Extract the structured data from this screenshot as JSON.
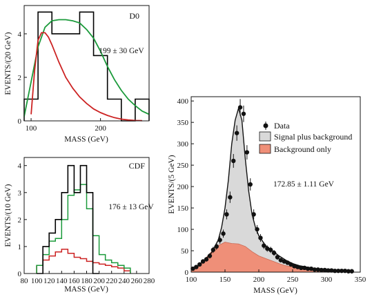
{
  "chart_data": [
    {
      "id": "d0",
      "type": "line",
      "label": "D0",
      "annotation": "199 ± 30 GeV",
      "xlabel": "MASS (GeV)",
      "ylabel": "EVENTS/(20 GeV)",
      "xlim": [
        90,
        270
      ],
      "ylim": [
        0,
        5.3
      ],
      "xticks": [
        100,
        200
      ],
      "yticks": [
        0,
        2,
        4
      ],
      "series": [
        {
          "kind": "histogram",
          "color": "#000000",
          "edges": [
            90,
            110,
            130,
            170,
            190,
            210,
            230,
            250,
            270
          ],
          "counts": [
            1,
            5,
            4,
            5,
            3,
            1,
            0,
            1
          ]
        },
        {
          "kind": "curve",
          "color": "#1a9a3a",
          "x": [
            90,
            100,
            110,
            120,
            130,
            140,
            150,
            160,
            170,
            180,
            190,
            200,
            210,
            220,
            230,
            240,
            250,
            260,
            270
          ],
          "y": [
            0.2,
            1.8,
            3.4,
            4.3,
            4.6,
            4.65,
            4.65,
            4.6,
            4.5,
            4.2,
            3.8,
            3.2,
            2.5,
            1.9,
            1.4,
            1.0,
            0.7,
            0.45,
            0.3
          ]
        },
        {
          "kind": "curve",
          "color": "#cc2222",
          "x": [
            100,
            105,
            110,
            115,
            120,
            125,
            130,
            140,
            150,
            160,
            170,
            180,
            190,
            200,
            210,
            220,
            230,
            240,
            250,
            260
          ],
          "y": [
            0.3,
            2.3,
            3.7,
            4.05,
            4.05,
            3.85,
            3.5,
            2.7,
            2.0,
            1.5,
            1.1,
            0.8,
            0.55,
            0.38,
            0.25,
            0.15,
            0.08,
            0.04,
            0.02,
            0.01
          ]
        }
      ]
    },
    {
      "id": "cdf",
      "type": "line",
      "label": "CDF",
      "annotation": "176 ± 13 GeV",
      "xlabel": "MASS (GeV)",
      "ylabel": "EVENTS/(10 GeV)",
      "xlim": [
        80,
        280
      ],
      "ylim": [
        0,
        4.3
      ],
      "xticks": [
        80,
        100,
        120,
        140,
        160,
        180,
        200,
        220,
        240,
        260,
        280
      ],
      "yticks": [
        0,
        1,
        2,
        3,
        4
      ],
      "series": [
        {
          "kind": "histogram",
          "color": "#000000",
          "edges": [
            100,
            110,
            120,
            130,
            140,
            150,
            160,
            170,
            180,
            190,
            200
          ],
          "counts": [
            0,
            1,
            1.5,
            2,
            3,
            4,
            3,
            4,
            3,
            0
          ]
        },
        {
          "kind": "histogram",
          "color": "#1a9a3a",
          "edges": [
            100,
            110,
            120,
            130,
            140,
            150,
            160,
            170,
            180,
            190,
            200,
            210,
            220,
            230,
            240,
            250
          ],
          "counts": [
            0.3,
            0.7,
            1.2,
            1.3,
            2.0,
            2.9,
            3.1,
            3.3,
            2.4,
            1.4,
            0.7,
            0.5,
            0.4,
            0.3,
            0.2
          ]
        },
        {
          "kind": "histogram",
          "color": "#cc2222",
          "edges": [
            100,
            110,
            120,
            130,
            140,
            150,
            160,
            170,
            180,
            190,
            200,
            210,
            220,
            230,
            240,
            250
          ],
          "counts": [
            0.3,
            0.5,
            0.65,
            0.8,
            0.9,
            0.75,
            0.6,
            0.55,
            0.45,
            0.4,
            0.35,
            0.3,
            0.25,
            0.2,
            0.1
          ]
        }
      ]
    },
    {
      "id": "combined",
      "type": "area",
      "annotation": "172.85 ± 1.11 GeV",
      "xlabel": "MASS (GeV)",
      "ylabel": "EVENTS/(5 GeV)",
      "xlim": [
        100,
        350
      ],
      "ylim": [
        0,
        410
      ],
      "xticks": [
        100,
        150,
        200,
        250,
        300,
        350
      ],
      "yticks": [
        0,
        50,
        100,
        150,
        200,
        250,
        300,
        350,
        400
      ],
      "legend": [
        "Data",
        "Signal plus background",
        "Background only"
      ],
      "legend_colors": [
        "#000000",
        "#d9d9d9",
        "#ef8f78"
      ],
      "series": [
        {
          "name": "Data",
          "kind": "points",
          "x": [
            102.5,
            107.5,
            112.5,
            117.5,
            122.5,
            127.5,
            132.5,
            137.5,
            142.5,
            147.5,
            152.5,
            157.5,
            162.5,
            167.5,
            172.5,
            177.5,
            182.5,
            187.5,
            192.5,
            197.5,
            202.5,
            207.5,
            212.5,
            217.5,
            222.5,
            227.5,
            232.5,
            237.5,
            242.5,
            247.5,
            252.5,
            257.5,
            262.5,
            267.5,
            272.5,
            277.5,
            282.5,
            287.5,
            292.5,
            297.5,
            302.5,
            307.5,
            312.5,
            317.5,
            322.5,
            327.5,
            332.5,
            337.5
          ],
          "y": [
            8,
            12,
            18,
            25,
            30,
            38,
            52,
            60,
            75,
            90,
            135,
            175,
            260,
            325,
            385,
            370,
            280,
            205,
            135,
            100,
            80,
            62,
            55,
            52,
            45,
            35,
            28,
            25,
            22,
            18,
            14,
            12,
            10,
            10,
            8,
            8,
            6,
            6,
            5,
            5,
            4,
            4,
            3,
            3,
            3,
            3,
            2,
            2
          ]
        },
        {
          "name": "Signal plus background",
          "kind": "filled-curve",
          "x": [
            100,
            110,
            120,
            130,
            140,
            145,
            150,
            155,
            160,
            165,
            170,
            175,
            180,
            185,
            190,
            195,
            200,
            210,
            220,
            230,
            240,
            250,
            260,
            270,
            280,
            290,
            300,
            310,
            320,
            330,
            340
          ],
          "y": [
            5,
            15,
            28,
            45,
            75,
            105,
            150,
            215,
            300,
            355,
            383,
            355,
            265,
            190,
            135,
            105,
            85,
            62,
            50,
            38,
            28,
            20,
            15,
            12,
            9,
            7,
            6,
            5,
            4,
            3,
            2
          ]
        },
        {
          "name": "Background only",
          "kind": "filled-curve",
          "x": [
            100,
            110,
            120,
            130,
            140,
            150,
            160,
            170,
            180,
            190,
            200,
            210,
            220,
            230,
            240,
            250,
            260,
            270,
            280,
            290,
            300,
            310,
            320,
            330,
            340
          ],
          "y": [
            5,
            15,
            30,
            48,
            62,
            70,
            67,
            66,
            60,
            48,
            38,
            32,
            26,
            20,
            15,
            12,
            9,
            7,
            6,
            5,
            4,
            3,
            3,
            2,
            2
          ]
        }
      ]
    }
  ]
}
